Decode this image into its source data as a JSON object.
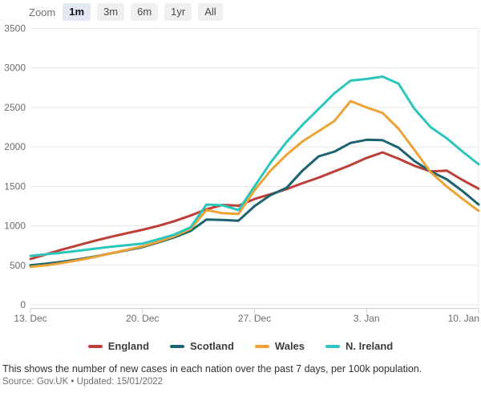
{
  "toolbar": {
    "zoom_label": "Zoom",
    "buttons": [
      {
        "label": "1m",
        "selected": true
      },
      {
        "label": "3m",
        "selected": false
      },
      {
        "label": "6m",
        "selected": false
      },
      {
        "label": "1yr",
        "selected": false
      },
      {
        "label": "All",
        "selected": false
      }
    ]
  },
  "chart_data": {
    "type": "line",
    "title": "",
    "xlabel": "",
    "ylabel": "",
    "ylim": [
      0,
      3500
    ],
    "ytick_step": 500,
    "grid": "horizontal",
    "legend_position": "bottom",
    "x_tick_labels": [
      "13. Dec",
      "20. Dec",
      "27. Dec",
      "3. Jan",
      "10. Jan"
    ],
    "x_tick_positions": [
      0,
      7,
      14,
      21,
      28
    ],
    "x_unit": "day",
    "series": [
      {
        "name": "England",
        "color": "#bc3f38",
        "values": [
          580,
          640,
          700,
          755,
          810,
          860,
          905,
          950,
          1000,
          1060,
          1130,
          1210,
          1265,
          1255,
          1340,
          1400,
          1465,
          1540,
          1610,
          1690,
          1770,
          1860,
          1930,
          1850,
          1760,
          1690,
          1700,
          1580,
          1470
        ]
      },
      {
        "name": "Scotland",
        "color": "#1c6370",
        "values": [
          500,
          520,
          545,
          575,
          610,
          650,
          690,
          730,
          790,
          855,
          935,
          1080,
          1075,
          1065,
          1250,
          1390,
          1480,
          1700,
          1880,
          1940,
          2050,
          2090,
          2085,
          1990,
          1820,
          1690,
          1590,
          1440,
          1270
        ]
      },
      {
        "name": "Wales",
        "color": "#eda236",
        "values": [
          480,
          500,
          530,
          565,
          605,
          650,
          695,
          740,
          800,
          870,
          960,
          1200,
          1160,
          1150,
          1450,
          1700,
          1900,
          2070,
          2200,
          2330,
          2580,
          2500,
          2430,
          2230,
          1960,
          1680,
          1500,
          1340,
          1190
        ]
      },
      {
        "name": "N. Ireland",
        "color": "#2cc5bc",
        "values": [
          620,
          640,
          660,
          685,
          710,
          735,
          755,
          775,
          830,
          890,
          980,
          1270,
          1260,
          1200,
          1500,
          1800,
          2060,
          2280,
          2480,
          2680,
          2840,
          2860,
          2890,
          2800,
          2480,
          2250,
          2110,
          1940,
          1780
        ]
      }
    ]
  },
  "footer": {
    "description": "This shows the number of new cases in each nation over the past 7 days, per 100k population.",
    "source": "Source: Gov.UK • Updated: 15/01/2022"
  }
}
